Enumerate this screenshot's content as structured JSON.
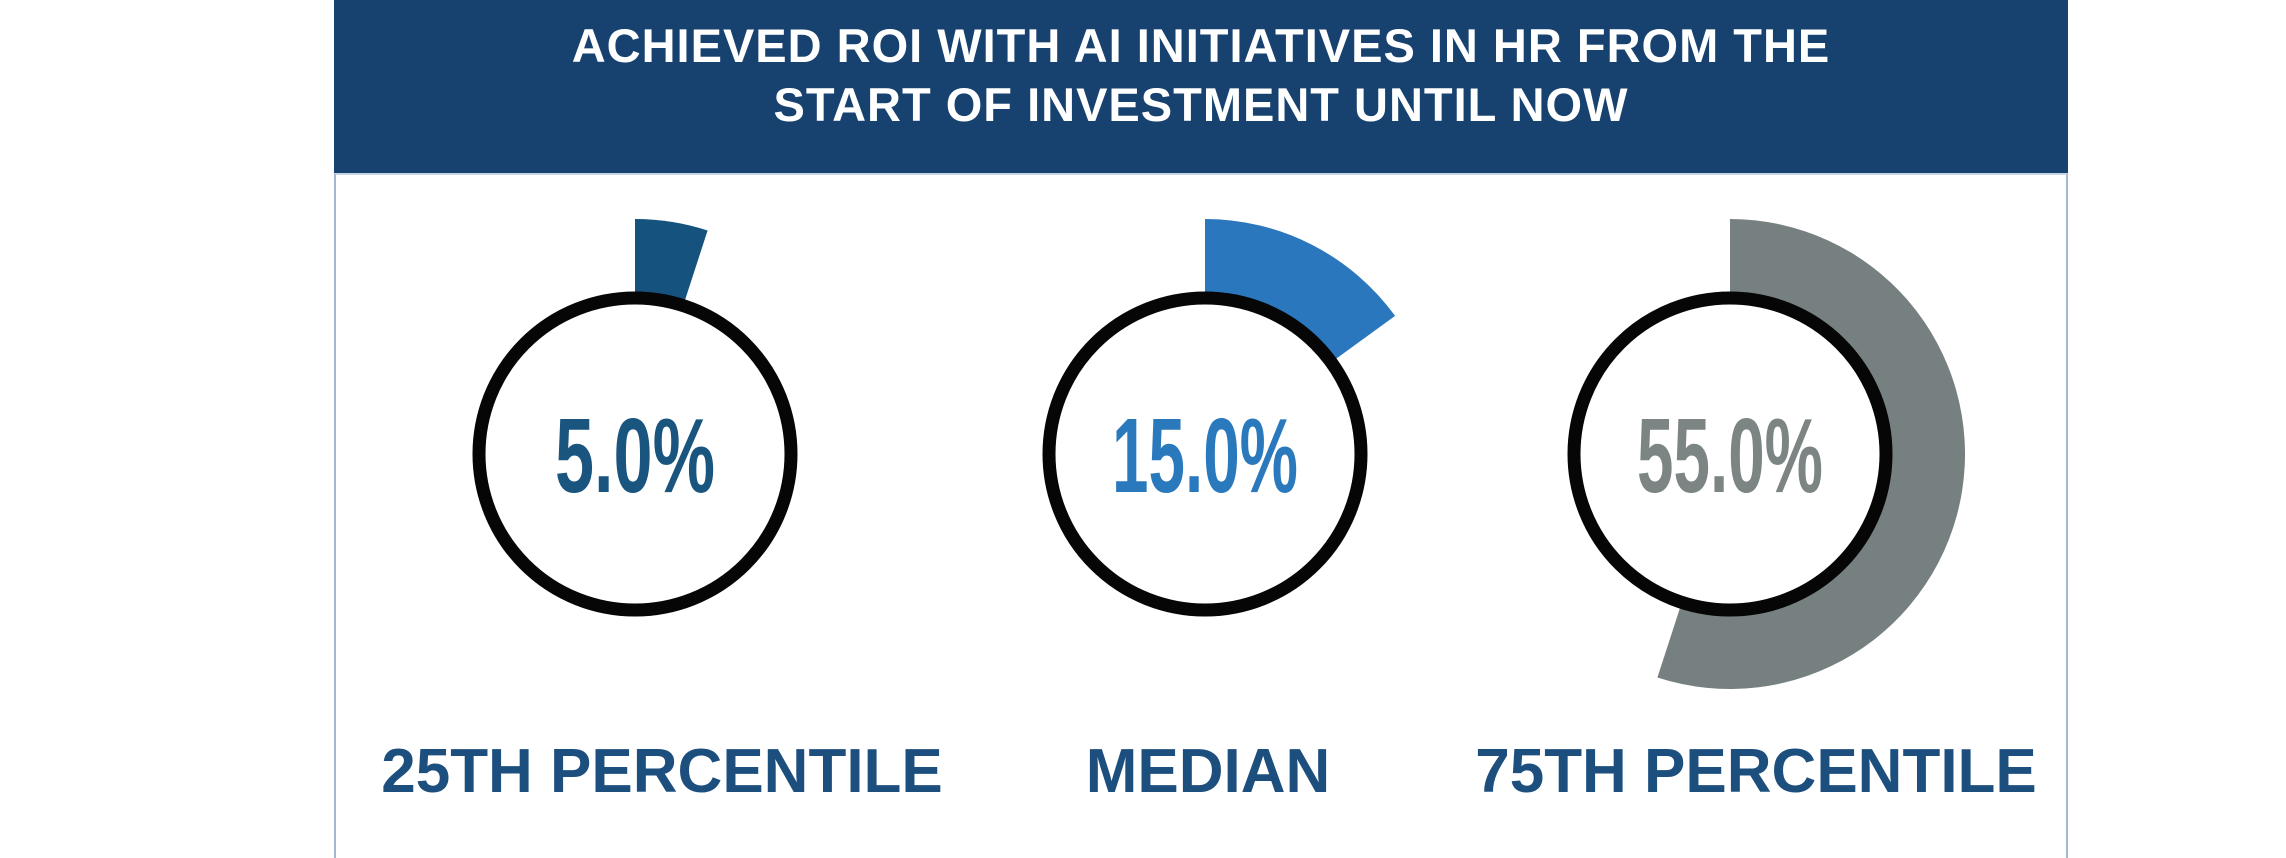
{
  "header": {
    "bg_color": "#17426F",
    "text_color": "#FFFFFF"
  },
  "panel": {
    "border_color": "#A2B8CE",
    "top_rule_color": "#C6D5E3",
    "background": "#FFFFFF"
  },
  "chart_data": {
    "type": "pie",
    "subtype": "percentage-gauge-set",
    "title": "ACHIEVED ROI WITH AI INITIATIVES IN HR FROM THE START OF INVESTMENT UNTIL NOW",
    "title_lines": [
      "ACHIEVED ROI WITH AI INITIATIVES IN HR FROM THE",
      "START OF INVESTMENT UNTIL NOW"
    ],
    "categories": [
      "25TH PERCENTILE",
      "MEDIAN",
      "75TH PERCENTILE"
    ],
    "values": [
      5.0,
      15.0,
      55.0
    ],
    "value_labels": [
      "5.0%",
      "15.0%",
      "55.0%"
    ],
    "max": 100,
    "start_angle_deg": 0,
    "direction": "clockwise",
    "wedge_colors": [
      "#15537E",
      "#2A77BD",
      "#778080"
    ],
    "value_text_colors": [
      "#1A5580",
      "#2B79BD",
      "#7D8584"
    ],
    "category_label_color": "#1C4E7E",
    "ring_color": "#060606",
    "ring_fill": "#FFFFFF",
    "legend_position": "none",
    "grid": false
  }
}
